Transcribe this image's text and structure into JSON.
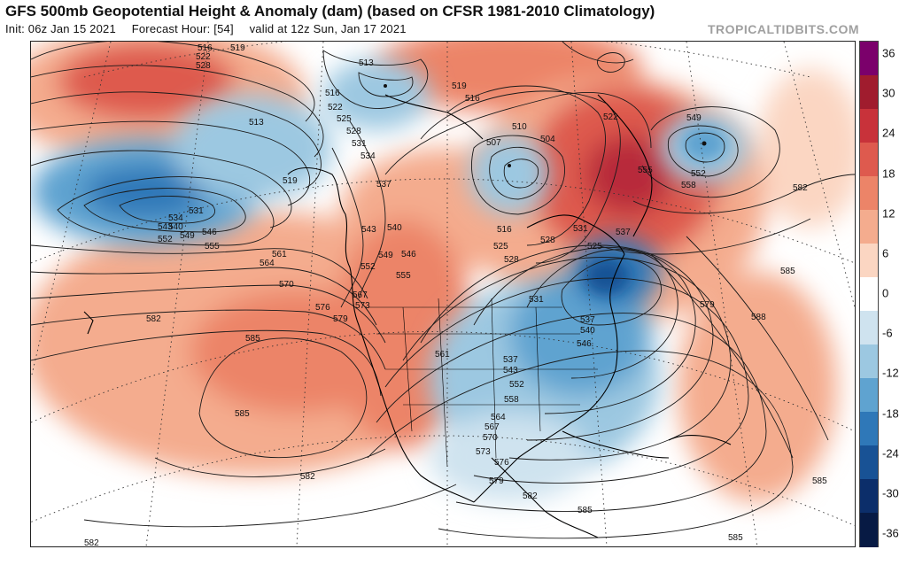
{
  "header": {
    "title": "GFS 500mb Geopotential Height & Anomaly (dam) (based on CFSR 1981-2010 Climatology)",
    "init": "Init: 06z Jan 15 2021",
    "forecast_hour": "Forecast Hour: [54]",
    "valid": "valid at 12z Sun, Jan 17 2021",
    "brand": "TROPICALTIDBITS.COM"
  },
  "colorbar": {
    "ticks": [
      "36",
      "30",
      "24",
      "18",
      "12",
      "6",
      "0",
      "-6",
      "-12",
      "-18",
      "-24",
      "-30",
      "-36"
    ],
    "colors": [
      "#7b006b",
      "#a01c2e",
      "#c8323a",
      "#de5a4e",
      "#ec8468",
      "#f4ac8e",
      "#fbd6c2",
      "#ffffff",
      "#cfe3ef",
      "#9cc8e1",
      "#5fa3d0",
      "#2f78b8",
      "#185295",
      "#0c2e6a",
      "#071a44"
    ]
  },
  "map": {
    "contour_labels": [
      "516",
      "519",
      "522",
      "528",
      "513",
      "525",
      "531",
      "534",
      "537",
      "510",
      "507",
      "504",
      "522",
      "549",
      "555",
      "552",
      "558",
      "582",
      "513",
      "519",
      "534",
      "543",
      "552",
      "531",
      "540",
      "549",
      "546",
      "555",
      "561",
      "564",
      "570",
      "576",
      "579",
      "582",
      "585",
      "567",
      "573",
      "543",
      "540",
      "546",
      "549",
      "552",
      "555",
      "516",
      "525",
      "528",
      "531",
      "537",
      "525",
      "585",
      "579",
      "588",
      "531",
      "537",
      "540",
      "546",
      "561",
      "543",
      "558",
      "564",
      "567",
      "570",
      "573",
      "576",
      "579",
      "582",
      "585",
      "582",
      "585",
      "585",
      "582"
    ],
    "anomaly_features": [
      {
        "label": "ridge-northeast-pacific",
        "anomaly": 18
      },
      {
        "label": "trough-central-pacific",
        "anomaly": -18
      },
      {
        "label": "ridge-subtropical-pacific",
        "anomaly": 18
      },
      {
        "label": "trough-us-southeast",
        "anomaly": -24
      },
      {
        "label": "ridge-greenland",
        "anomaly": 30
      },
      {
        "label": "low-north-atlantic",
        "anomaly": -24
      }
    ]
  }
}
